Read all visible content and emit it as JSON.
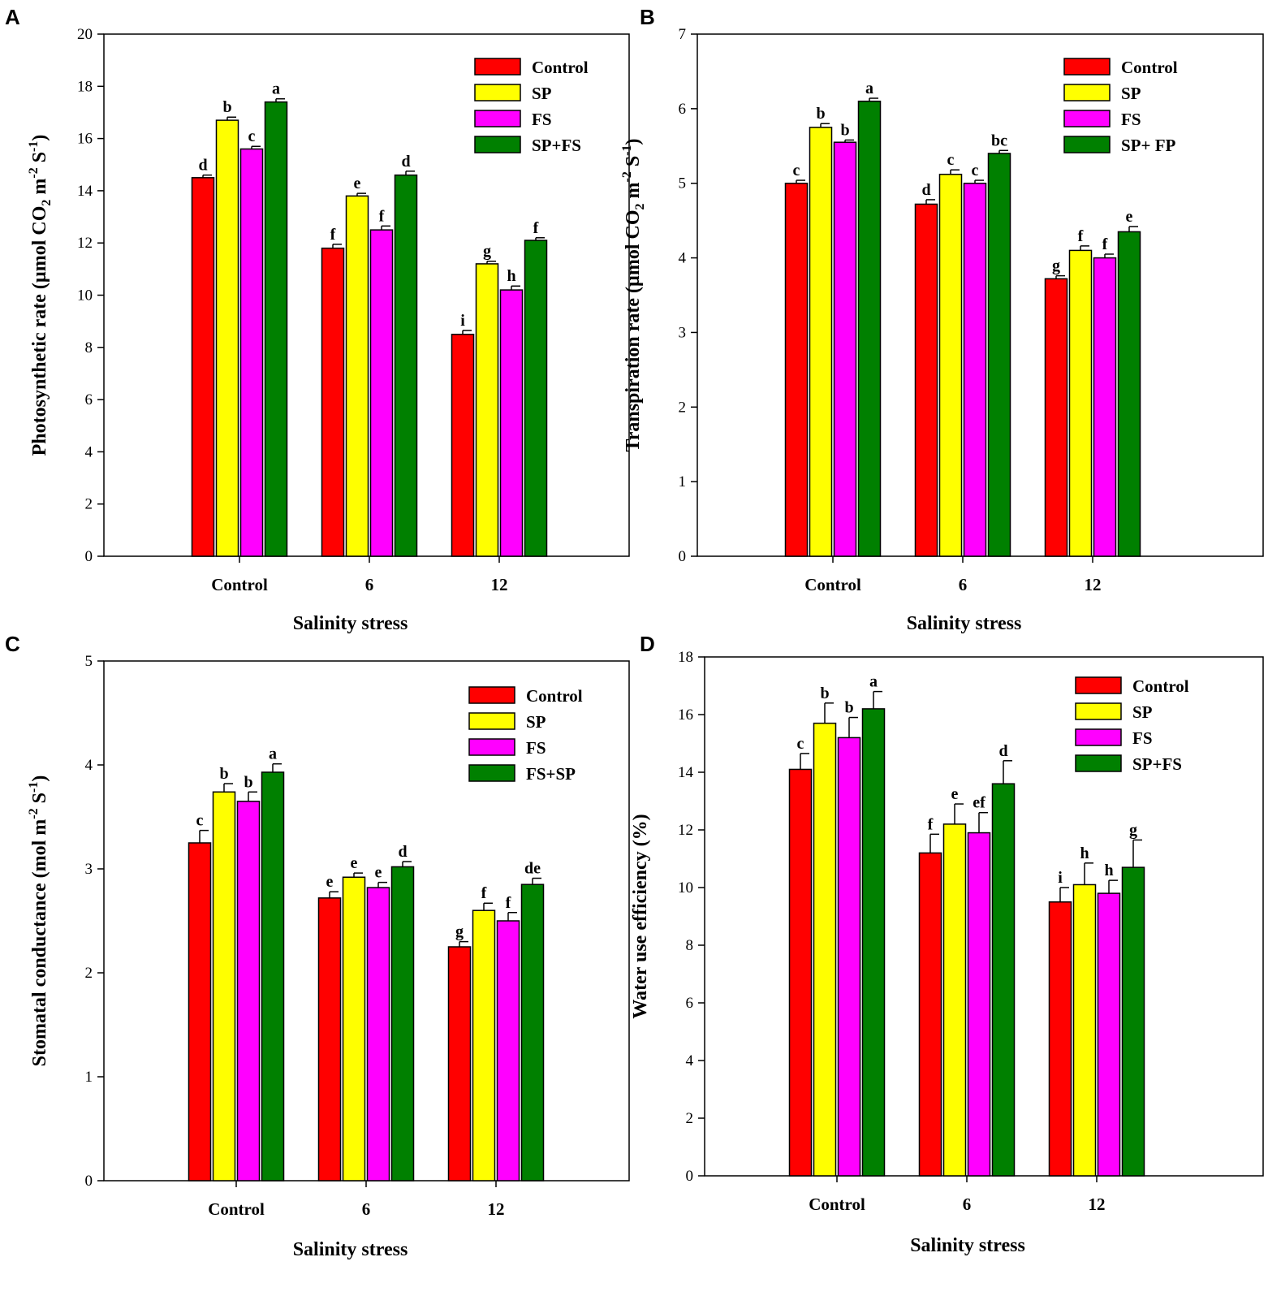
{
  "colors": {
    "Control": "#ff0000",
    "SP": "#ffff00",
    "FS": "#ff00ff",
    "green": "#008000"
  },
  "chart_data": [
    {
      "panel": "A",
      "type": "bar",
      "title": "",
      "xlabel": "Salinity stress",
      "ylabel": "Photosynthetic rate (µmol CO2 m-2 S-1)",
      "ylabel_parts": {
        "main": "Photosynthetic rate (µmol CO",
        "sub": "2",
        "mid": " m",
        "sup1": "-2",
        "mid2": " S",
        "sup2": "-1",
        "end": ")"
      },
      "ylim": [
        0,
        20
      ],
      "yticks": [
        0,
        2,
        4,
        6,
        8,
        10,
        12,
        14,
        16,
        18,
        20
      ],
      "categories": [
        "Control",
        "6",
        "12"
      ],
      "legend_position": "top-right",
      "series": [
        {
          "name": "Control",
          "color_key": "Control",
          "values": [
            14.5,
            11.8,
            8.5
          ],
          "errors": [
            0.1,
            0.15,
            0.15
          ],
          "labels": [
            "d",
            "f",
            "i"
          ]
        },
        {
          "name": "SP",
          "color_key": "SP",
          "values": [
            16.7,
            13.8,
            11.2
          ],
          "errors": [
            0.12,
            0.1,
            0.1
          ],
          "labels": [
            "b",
            "e",
            "g"
          ]
        },
        {
          "name": "FS",
          "color_key": "FS",
          "values": [
            15.6,
            12.5,
            10.2
          ],
          "errors": [
            0.1,
            0.15,
            0.15
          ],
          "labels": [
            "c",
            "f",
            "h"
          ]
        },
        {
          "name": "SP+FS",
          "color_key": "green",
          "values": [
            17.4,
            14.6,
            12.1
          ],
          "errors": [
            0.12,
            0.15,
            0.1
          ],
          "labels": [
            "a",
            "d",
            "f"
          ]
        }
      ]
    },
    {
      "panel": "B",
      "type": "bar",
      "title": "",
      "xlabel": "Salinity stress",
      "ylabel": "Transpiration rate (µmol CO2 m-2 S-1)",
      "ylabel_parts": {
        "main": "Transpiration rate (µmol CO",
        "sub": "2",
        "mid": " m",
        "sup1": "-2",
        "mid2": " S",
        "sup2": "-1",
        "end": ")"
      },
      "ylim": [
        0,
        7
      ],
      "yticks": [
        0,
        1,
        2,
        3,
        4,
        5,
        6,
        7
      ],
      "categories": [
        "Control",
        "6",
        "12"
      ],
      "legend_position": "top-right",
      "series": [
        {
          "name": "Control",
          "color_key": "Control",
          "values": [
            5.0,
            4.72,
            3.72
          ],
          "errors": [
            0.04,
            0.06,
            0.04
          ],
          "labels": [
            "c",
            "d",
            "g"
          ]
        },
        {
          "name": "SP",
          "color_key": "SP",
          "values": [
            5.75,
            5.12,
            4.1
          ],
          "errors": [
            0.05,
            0.06,
            0.06
          ],
          "labels": [
            "b",
            "c",
            "f"
          ]
        },
        {
          "name": "FS",
          "color_key": "FS",
          "values": [
            5.55,
            5.0,
            4.0
          ],
          "errors": [
            0.03,
            0.04,
            0.05
          ],
          "labels": [
            "b",
            "c",
            "f"
          ]
        },
        {
          "name": "SP+ FP",
          "color_key": "green",
          "values": [
            6.1,
            5.4,
            4.35
          ],
          "errors": [
            0.04,
            0.04,
            0.07
          ],
          "labels": [
            "a",
            "bc",
            "e"
          ]
        }
      ]
    },
    {
      "panel": "C",
      "type": "bar",
      "title": "",
      "xlabel": "Salinity stress",
      "ylabel": "Stomatal conductance (mol m-2 S-1)",
      "ylabel_parts": {
        "main": "Stomatal conductance (mol  m",
        "sub": "",
        "mid": "",
        "sup1": "-2",
        "mid2": " S",
        "sup2": "-1",
        "end": ")"
      },
      "ylim": [
        0,
        5
      ],
      "yticks": [
        0,
        1,
        2,
        3,
        4,
        5
      ],
      "categories": [
        "Control",
        "6",
        "12"
      ],
      "legend_position": "top-right",
      "series": [
        {
          "name": "Control",
          "color_key": "Control",
          "values": [
            3.25,
            2.72,
            2.25
          ],
          "errors": [
            0.12,
            0.06,
            0.05
          ],
          "labels": [
            "c",
            "e",
            "g"
          ]
        },
        {
          "name": "SP",
          "color_key": "SP",
          "values": [
            3.74,
            2.92,
            2.6
          ],
          "errors": [
            0.08,
            0.04,
            0.07
          ],
          "labels": [
            "b",
            "e",
            "f"
          ]
        },
        {
          "name": "FS",
          "color_key": "FS",
          "values": [
            3.65,
            2.82,
            2.5
          ],
          "errors": [
            0.09,
            0.05,
            0.08
          ],
          "labels": [
            "b",
            "e",
            "f"
          ]
        },
        {
          "name": "FS+SP",
          "color_key": "green",
          "values": [
            3.93,
            3.02,
            2.85
          ],
          "errors": [
            0.08,
            0.05,
            0.06
          ],
          "labels": [
            "a",
            "d",
            "de"
          ]
        }
      ]
    },
    {
      "panel": "D",
      "type": "bar",
      "title": "",
      "xlabel": "Salinity stress",
      "ylabel": "Water use efficiency (%)",
      "ylabel_parts": {
        "main": "Water use efficiency (%)",
        "sub": "",
        "mid": "",
        "sup1": "",
        "mid2": "",
        "sup2": "",
        "end": ""
      },
      "ylim": [
        0,
        18
      ],
      "yticks": [
        0,
        2,
        4,
        6,
        8,
        10,
        12,
        14,
        16,
        18
      ],
      "categories": [
        "Control",
        "6",
        "12"
      ],
      "legend_position": "top-right",
      "series": [
        {
          "name": "Control",
          "color_key": "Control",
          "values": [
            14.1,
            11.2,
            9.5
          ],
          "errors": [
            0.55,
            0.65,
            0.5
          ],
          "labels": [
            "c",
            "f",
            "i"
          ]
        },
        {
          "name": "SP",
          "color_key": "SP",
          "values": [
            15.7,
            12.2,
            10.1
          ],
          "errors": [
            0.7,
            0.7,
            0.75
          ],
          "labels": [
            "b",
            "e",
            "h"
          ]
        },
        {
          "name": "FS",
          "color_key": "FS",
          "values": [
            15.2,
            11.9,
            9.8
          ],
          "errors": [
            0.7,
            0.7,
            0.45
          ],
          "labels": [
            "b",
            "ef",
            "h"
          ]
        },
        {
          "name": "SP+FS",
          "color_key": "green",
          "values": [
            16.2,
            13.6,
            10.7
          ],
          "errors": [
            0.6,
            0.8,
            0.95
          ],
          "labels": [
            "a",
            "d",
            "g"
          ]
        }
      ]
    }
  ]
}
